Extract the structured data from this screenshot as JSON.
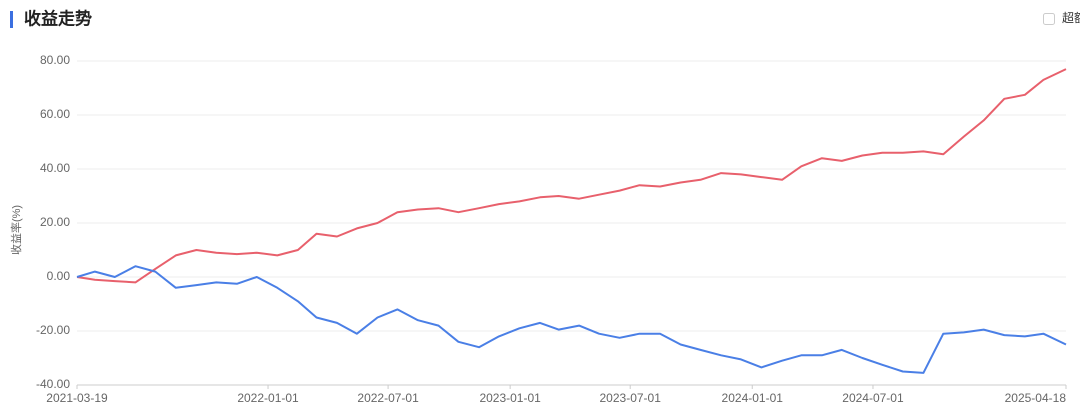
{
  "title": "收益走势",
  "toggle": "超额",
  "chart_data": {
    "type": "line",
    "ylabel": "收益率(%)",
    "x": [
      "2021-03-19",
      "2021-04-15",
      "2021-05-15",
      "2021-06-15",
      "2021-07-15",
      "2021-08-15",
      "2021-09-15",
      "2021-10-15",
      "2021-11-15",
      "2021-12-15",
      "2022-01-15",
      "2022-02-15",
      "2022-03-15",
      "2022-04-15",
      "2022-05-15",
      "2022-06-15",
      "2022-07-15",
      "2022-08-15",
      "2022-09-15",
      "2022-10-15",
      "2022-11-15",
      "2022-12-15",
      "2023-01-15",
      "2023-02-15",
      "2023-03-15",
      "2023-04-15",
      "2023-05-15",
      "2023-06-15",
      "2023-07-15",
      "2023-08-15",
      "2023-09-15",
      "2023-10-15",
      "2023-11-15",
      "2023-12-15",
      "2024-01-15",
      "2024-02-15",
      "2024-03-15",
      "2024-04-15",
      "2024-05-15",
      "2024-06-15",
      "2024-07-15",
      "2024-08-15",
      "2024-09-15",
      "2024-10-15",
      "2024-11-15",
      "2024-12-15",
      "2025-01-15",
      "2025-02-15",
      "2025-03-15",
      "2025-04-18"
    ],
    "series": [
      {
        "color": "#e8606c",
        "values": [
          0,
          -1,
          -1.5,
          -2,
          3,
          8,
          10,
          9,
          8.5,
          9,
          8,
          10,
          16,
          15,
          18,
          20,
          24,
          25,
          25.5,
          24,
          25.5,
          27,
          28,
          29.5,
          30,
          29,
          30.5,
          32,
          34,
          33.5,
          35,
          36,
          38.5,
          38,
          37,
          36,
          41,
          44,
          43,
          45,
          46,
          46,
          46.5,
          45.5,
          52,
          58,
          66,
          67.5,
          73,
          77
        ]
      },
      {
        "color": "#4a7fe6",
        "values": [
          0,
          2,
          0,
          4,
          2,
          -4,
          -3,
          -2,
          -2.5,
          0,
          -4,
          -9,
          -15,
          -17,
          -21,
          -15,
          -12,
          -16,
          -18,
          -24,
          -26,
          -22,
          -19,
          -17,
          -19.5,
          -18,
          -21,
          -22.5,
          -21,
          -21,
          -25,
          -27,
          -29,
          -30.5,
          -33.5,
          -31,
          -29,
          -29,
          -27,
          -30,
          -32.5,
          -35,
          -35.5,
          -21,
          -20.5,
          -19.5,
          -21.5,
          -22,
          -21,
          -25
        ]
      }
    ],
    "xlim": [
      "2021-03-19",
      "2025-04-18"
    ],
    "xticks": [
      "2021-03-19",
      "2022-01-01",
      "2022-07-01",
      "2023-01-01",
      "2023-07-01",
      "2024-01-01",
      "2024-07-01",
      "2025-04-18"
    ],
    "ylim": [
      -40,
      80
    ],
    "yticks": [
      {
        "value": -40,
        "label": "-40.00"
      },
      {
        "value": -20,
        "label": "-20.00"
      },
      {
        "value": 0,
        "label": "0.00"
      },
      {
        "value": 20,
        "label": "20.00"
      },
      {
        "value": 40,
        "label": "40.00"
      },
      {
        "value": 60,
        "label": "60.00"
      },
      {
        "value": 80,
        "label": "80.00"
      }
    ],
    "grid": true
  }
}
